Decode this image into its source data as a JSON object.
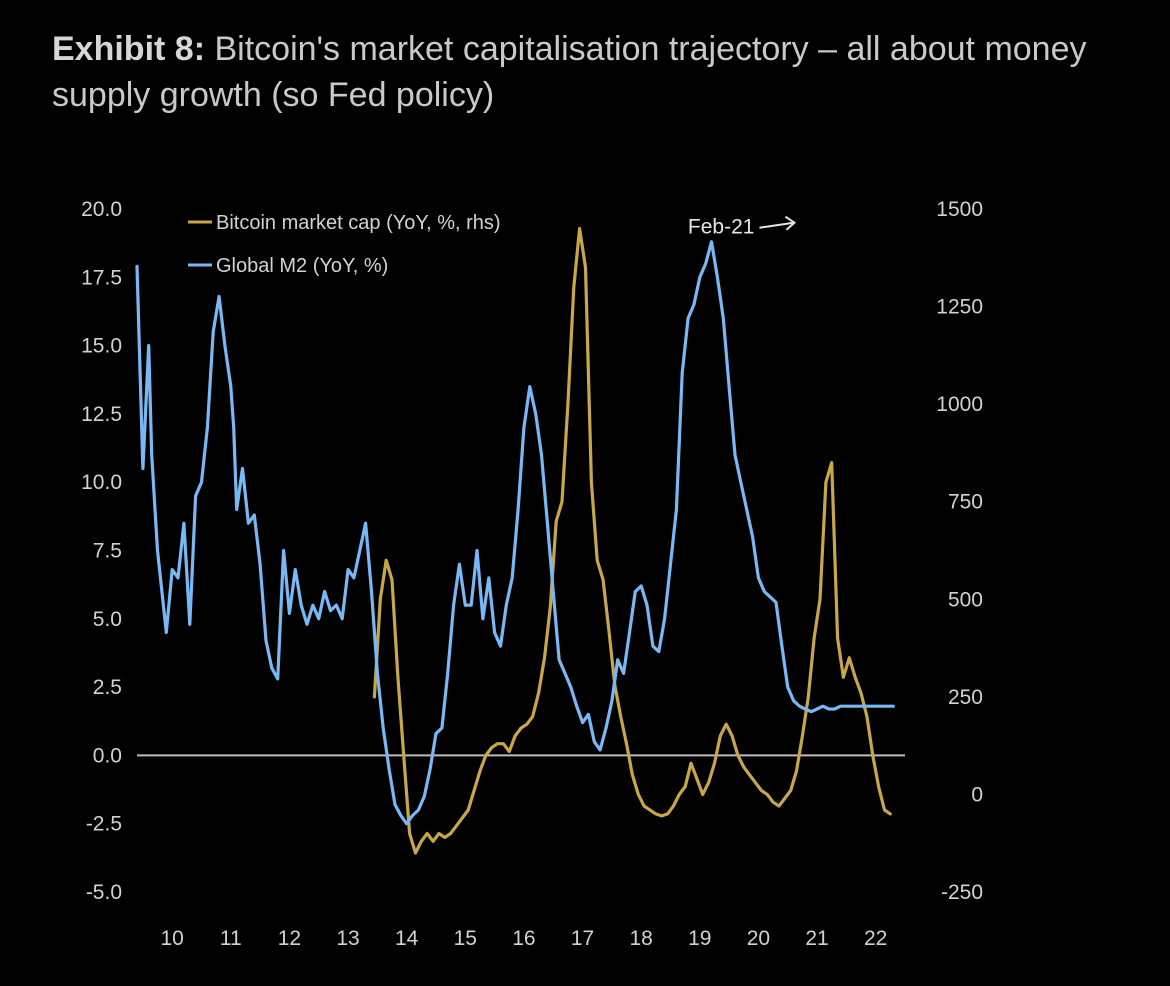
{
  "title": {
    "lead": "Exhibit 8:",
    "text": "Bitcoin's market capitalisation trajectory – all about money supply growth (so Fed policy)"
  },
  "chart_data": {
    "type": "line",
    "xlabel": "",
    "ylabel": "",
    "x_ticks": [
      "10",
      "11",
      "12",
      "13",
      "14",
      "15",
      "16",
      "17",
      "18",
      "19",
      "20",
      "21",
      "22"
    ],
    "xlim": [
      2009.8,
      2022.9
    ],
    "ylim_left": [
      -5.0,
      20.0
    ],
    "ylim_right": [
      -250,
      1500
    ],
    "y_ticks_left": [
      "20.0",
      "17.5",
      "15.0",
      "12.5",
      "10.0",
      "7.5",
      "5.0",
      "2.5",
      "0.0",
      "-2.5",
      "-5.0"
    ],
    "y_ticks_right": [
      "1500",
      "1250",
      "1000",
      "750",
      "500",
      "250",
      "0",
      "-250"
    ],
    "legend_position": "top-left",
    "colors": {
      "btc": "#c9a647",
      "m2": "#78b8f4",
      "zero_line": "#bdbdbd",
      "background": "#000000"
    },
    "annotation": {
      "text": "Feb-21",
      "x": 2021.1,
      "y": 1470
    },
    "series": [
      {
        "name": "Global M2 (YoY, %)",
        "axis": "left",
        "x": [
          2009.8,
          2009.9,
          2010.0,
          2010.05,
          2010.15,
          2010.3,
          2010.4,
          2010.5,
          2010.6,
          2010.7,
          2010.8,
          2010.9,
          2011.0,
          2011.1,
          2011.2,
          2011.3,
          2011.4,
          2011.45,
          2011.5,
          2011.6,
          2011.7,
          2011.8,
          2011.9,
          2012.0,
          2012.1,
          2012.2,
          2012.3,
          2012.4,
          2012.5,
          2012.6,
          2012.7,
          2012.8,
          2012.9,
          2013.0,
          2013.1,
          2013.2,
          2013.3,
          2013.4,
          2013.5,
          2013.6,
          2013.7,
          2013.8,
          2013.9,
          2014.0,
          2014.1,
          2014.2,
          2014.3,
          2014.4,
          2014.5,
          2014.6,
          2014.7,
          2014.8,
          2014.9,
          2015.0,
          2015.1,
          2015.2,
          2015.3,
          2015.4,
          2015.5,
          2015.6,
          2015.7,
          2015.8,
          2015.9,
          2016.0,
          2016.1,
          2016.2,
          2016.3,
          2016.4,
          2016.5,
          2016.6,
          2016.7,
          2016.8,
          2016.9,
          2017.0,
          2017.1,
          2017.2,
          2017.3,
          2017.4,
          2017.5,
          2017.6,
          2017.7,
          2017.8,
          2017.9,
          2018.0,
          2018.1,
          2018.2,
          2018.3,
          2018.4,
          2018.5,
          2018.6,
          2018.7,
          2018.8,
          2018.9,
          2019.0,
          2019.1,
          2019.2,
          2019.3,
          2019.4,
          2019.5,
          2019.6,
          2019.7,
          2019.8,
          2019.9,
          2020.0,
          2020.1,
          2020.2,
          2020.3,
          2020.4,
          2020.5,
          2020.6,
          2020.7,
          2020.8,
          2020.9,
          2021.0,
          2021.1,
          2021.2,
          2021.3,
          2021.4,
          2021.5,
          2021.6,
          2021.7,
          2021.8,
          2021.9,
          2022.0,
          2022.1,
          2022.2,
          2022.3,
          2022.4,
          2022.5,
          2022.6,
          2022.7
        ],
        "values": [
          17.9,
          10.5,
          15.0,
          11.0,
          7.5,
          4.5,
          6.8,
          6.5,
          8.5,
          4.8,
          9.5,
          10.0,
          12.0,
          15.5,
          16.8,
          15.0,
          13.5,
          12.0,
          9.0,
          10.5,
          8.5,
          8.8,
          7.0,
          4.2,
          3.2,
          2.8,
          7.5,
          5.2,
          6.8,
          5.5,
          4.8,
          5.5,
          5.0,
          6.0,
          5.3,
          5.5,
          5.0,
          6.8,
          6.5,
          7.5,
          8.5,
          6.0,
          3.0,
          1.0,
          -0.5,
          -1.8,
          -2.2,
          -2.5,
          -2.2,
          -2.0,
          -1.5,
          -0.5,
          0.8,
          1.0,
          3.0,
          5.5,
          7.0,
          5.5,
          5.5,
          7.5,
          5.0,
          6.5,
          4.5,
          4.0,
          5.5,
          6.5,
          9.0,
          12.0,
          13.5,
          12.5,
          11.0,
          8.5,
          6.0,
          3.5,
          3.0,
          2.5,
          1.8,
          1.2,
          1.5,
          0.5,
          0.2,
          1.0,
          2.0,
          3.5,
          3.0,
          4.5,
          6.0,
          6.2,
          5.5,
          4.0,
          3.8,
          5.0,
          7.0,
          9.0,
          14.0,
          16.0,
          16.5,
          17.5,
          18.0,
          18.8,
          17.5,
          16.0,
          13.5,
          11.0,
          10.0,
          9.0,
          8.0,
          6.5,
          6.0,
          5.8,
          5.6,
          4.0,
          2.5,
          2.0,
          1.8,
          1.7,
          1.6,
          1.7,
          1.8,
          1.7,
          1.7,
          1.8,
          1.8,
          1.8,
          1.8,
          1.8,
          1.8,
          1.8,
          1.8,
          1.8,
          1.8
        ]
      },
      {
        "name": "Bitcoin market cap (YoY, %, rhs)",
        "axis": "right",
        "x": [
          2013.85,
          2013.95,
          2014.05,
          2014.15,
          2014.25,
          2014.35,
          2014.45,
          2014.55,
          2014.65,
          2014.75,
          2014.85,
          2014.95,
          2015.05,
          2015.15,
          2015.25,
          2015.35,
          2015.45,
          2015.55,
          2015.65,
          2015.75,
          2015.85,
          2015.95,
          2016.05,
          2016.15,
          2016.25,
          2016.35,
          2016.45,
          2016.55,
          2016.65,
          2016.75,
          2016.85,
          2016.95,
          2017.05,
          2017.15,
          2017.25,
          2017.35,
          2017.45,
          2017.55,
          2017.65,
          2017.75,
          2017.85,
          2017.95,
          2018.05,
          2018.15,
          2018.25,
          2018.35,
          2018.45,
          2018.55,
          2018.65,
          2018.75,
          2018.85,
          2018.95,
          2019.05,
          2019.15,
          2019.25,
          2019.35,
          2019.45,
          2019.55,
          2019.65,
          2019.75,
          2019.85,
          2019.95,
          2020.05,
          2020.15,
          2020.25,
          2020.35,
          2020.45,
          2020.55,
          2020.65,
          2020.75,
          2020.85,
          2020.95,
          2021.05,
          2021.15,
          2021.25,
          2021.35,
          2021.45,
          2021.55,
          2021.65,
          2021.75,
          2021.85,
          2021.95,
          2022.05,
          2022.15,
          2022.25,
          2022.35,
          2022.45,
          2022.55,
          2022.65
        ],
        "values": [
          250,
          500,
          600,
          550,
          300,
          100,
          -100,
          -150,
          -120,
          -100,
          -120,
          -100,
          -110,
          -100,
          -80,
          -60,
          -40,
          10,
          60,
          100,
          120,
          130,
          130,
          110,
          150,
          170,
          180,
          200,
          260,
          350,
          480,
          700,
          750,
          1000,
          1300,
          1450,
          1350,
          800,
          600,
          550,
          420,
          280,
          200,
          130,
          50,
          0,
          -30,
          -40,
          -50,
          -55,
          -50,
          -30,
          0,
          20,
          80,
          40,
          0,
          30,
          80,
          150,
          180,
          150,
          100,
          70,
          50,
          30,
          10,
          0,
          -20,
          -30,
          -10,
          10,
          60,
          150,
          250,
          400,
          500,
          800,
          850,
          400,
          300,
          350,
          300,
          260,
          200,
          100,
          20,
          -40,
          -50
        ]
      }
    ]
  }
}
